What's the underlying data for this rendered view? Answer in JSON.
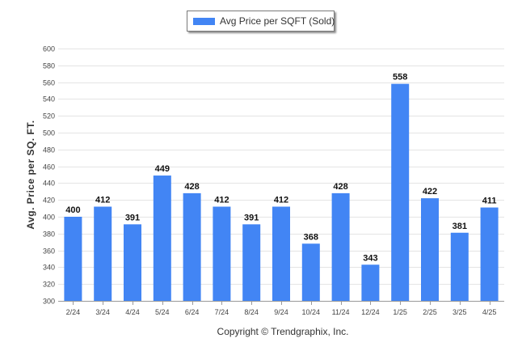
{
  "chart_data": {
    "type": "bar",
    "categories": [
      "2/24",
      "3/24",
      "4/24",
      "5/24",
      "6/24",
      "7/24",
      "8/24",
      "9/24",
      "10/24",
      "11/24",
      "12/24",
      "1/25",
      "2/25",
      "3/25",
      "4/25"
    ],
    "series": [
      {
        "name": "Avg Price per SQFT (Sold)",
        "values": [
          400,
          412,
          391,
          449,
          428,
          412,
          391,
          412,
          368,
          428,
          343,
          558,
          422,
          381,
          411
        ]
      }
    ],
    "ylabel": "Avg. Price per SQ. FT.",
    "xlabel": "",
    "ylim": [
      300,
      600
    ],
    "yticks": [
      300,
      320,
      340,
      360,
      380,
      400,
      420,
      440,
      460,
      480,
      500,
      520,
      540,
      560,
      580,
      600
    ],
    "grid": true,
    "legend": "top-center",
    "bar_color": "#4285f4",
    "data_labels": true
  },
  "footer": {
    "copyright": "Copyright © Trendgraphix, Inc."
  }
}
